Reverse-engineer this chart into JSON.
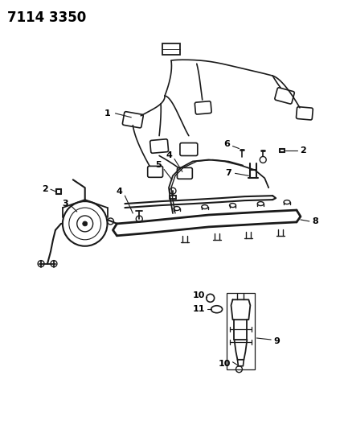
{
  "title": "7114 3350",
  "background_color": "#ffffff",
  "line_color": "#1a1a1a",
  "label_color": "#000000",
  "title_fontsize": 12,
  "label_fontsize": 8,
  "fig_width": 4.28,
  "fig_height": 5.33,
  "dpi": 100
}
